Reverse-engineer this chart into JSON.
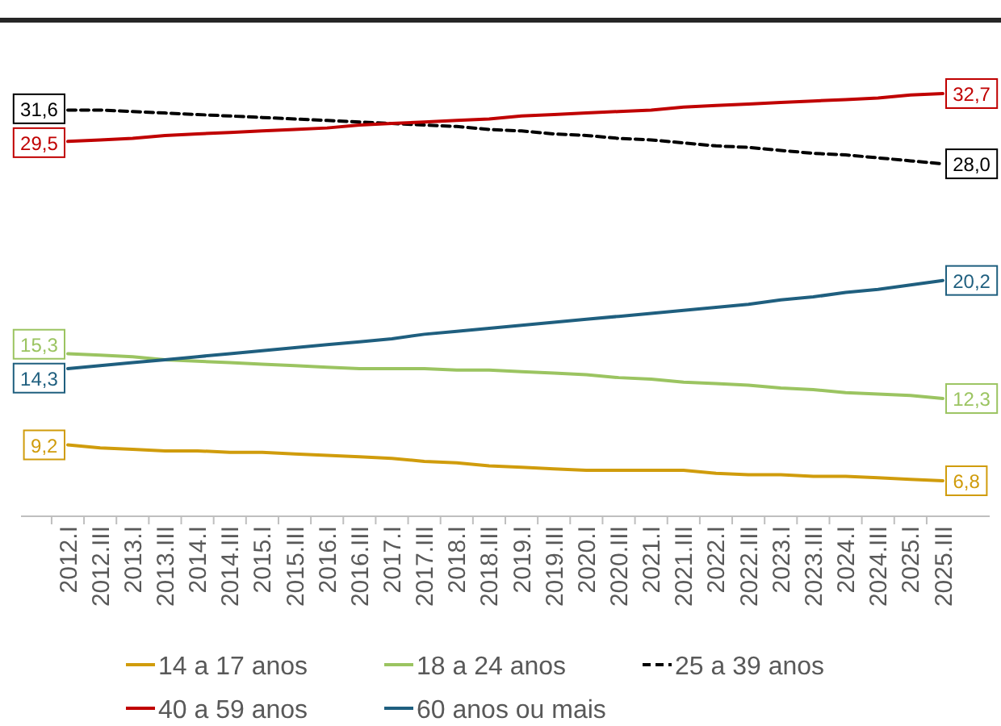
{
  "chart_data": {
    "type": "line",
    "categories": [
      "2012.I",
      "2012.III",
      "2013.I",
      "2013.III",
      "2014.I",
      "2014.III",
      "2015.I",
      "2015.III",
      "2016.I",
      "2016.III",
      "2017.I",
      "2017.III",
      "2018.I",
      "2018.III",
      "2019.I",
      "2019.III",
      "2020.I",
      "2020.III",
      "2021.I",
      "2021.III",
      "2022.I",
      "2022.III",
      "2023.I",
      "2023.III",
      "2024.I",
      "2024.III",
      "2025.I",
      "2025.III"
    ],
    "series": [
      {
        "name": "14 a 17 anos",
        "color": "#d09c0c",
        "values": [
          9.2,
          9.0,
          8.9,
          8.8,
          8.8,
          8.7,
          8.7,
          8.6,
          8.5,
          8.4,
          8.3,
          8.1,
          8.0,
          7.8,
          7.7,
          7.6,
          7.5,
          7.5,
          7.5,
          7.5,
          7.3,
          7.2,
          7.2,
          7.1,
          7.1,
          7.0,
          6.9,
          6.8
        ],
        "value_labels": [
          "9,2",
          null,
          null,
          null,
          null,
          null,
          null,
          null,
          null,
          null,
          null,
          null,
          null,
          null,
          null,
          null,
          null,
          null,
          null,
          null,
          null,
          null,
          null,
          null,
          null,
          null,
          null,
          "6,8"
        ]
      },
      {
        "name": "18 a 24 anos",
        "color": "#9bc461",
        "values": [
          15.3,
          15.2,
          15.1,
          14.9,
          14.8,
          14.7,
          14.6,
          14.5,
          14.4,
          14.3,
          14.3,
          14.3,
          14.2,
          14.2,
          14.1,
          14.0,
          13.9,
          13.7,
          13.6,
          13.4,
          13.3,
          13.2,
          13.0,
          12.9,
          12.7,
          12.6,
          12.5,
          12.3
        ],
        "value_labels": [
          "15,3",
          null,
          null,
          null,
          null,
          null,
          null,
          null,
          null,
          null,
          null,
          null,
          null,
          null,
          null,
          null,
          null,
          null,
          null,
          null,
          null,
          null,
          null,
          null,
          null,
          null,
          null,
          "12,3"
        ]
      },
      {
        "name": "25 a 39 anos",
        "color": "#000000",
        "line_style": "dashed",
        "values": [
          31.6,
          31.6,
          31.5,
          31.4,
          31.3,
          31.2,
          31.1,
          31.0,
          30.9,
          30.8,
          30.7,
          30.6,
          30.5,
          30.3,
          30.2,
          30.0,
          29.9,
          29.7,
          29.6,
          29.4,
          29.2,
          29.1,
          28.9,
          28.7,
          28.6,
          28.4,
          28.2,
          28.0
        ],
        "value_labels": [
          "31,6",
          null,
          null,
          null,
          null,
          null,
          null,
          null,
          null,
          null,
          null,
          null,
          null,
          null,
          null,
          null,
          null,
          null,
          null,
          null,
          null,
          null,
          null,
          null,
          null,
          null,
          null,
          "28,0"
        ]
      },
      {
        "name": "40 a 59 anos",
        "color": "#c00000",
        "values": [
          29.5,
          29.6,
          29.7,
          29.9,
          30.0,
          30.1,
          30.2,
          30.3,
          30.4,
          30.6,
          30.7,
          30.8,
          30.9,
          31.0,
          31.2,
          31.3,
          31.4,
          31.5,
          31.6,
          31.8,
          31.9,
          32.0,
          32.1,
          32.2,
          32.3,
          32.4,
          32.6,
          32.7
        ],
        "value_labels": [
          "29,5",
          null,
          null,
          null,
          null,
          null,
          null,
          null,
          null,
          null,
          null,
          null,
          null,
          null,
          null,
          null,
          null,
          null,
          null,
          null,
          null,
          null,
          null,
          null,
          null,
          null,
          null,
          "32,7"
        ]
      },
      {
        "name": "60 anos ou mais",
        "color": "#1f5f7f",
        "values": [
          14.3,
          14.5,
          14.7,
          14.9,
          15.1,
          15.3,
          15.5,
          15.7,
          15.9,
          16.1,
          16.3,
          16.6,
          16.8,
          17.0,
          17.2,
          17.4,
          17.6,
          17.8,
          18.0,
          18.2,
          18.4,
          18.6,
          18.9,
          19.1,
          19.4,
          19.6,
          19.9,
          20.2
        ],
        "value_labels": [
          "14,3",
          null,
          null,
          null,
          null,
          null,
          null,
          null,
          null,
          null,
          null,
          null,
          null,
          null,
          null,
          null,
          null,
          null,
          null,
          null,
          null,
          null,
          null,
          null,
          null,
          null,
          null,
          "20,2"
        ]
      }
    ],
    "tick_labels": "x",
    "legend": "bottom",
    "marker": "none"
  }
}
